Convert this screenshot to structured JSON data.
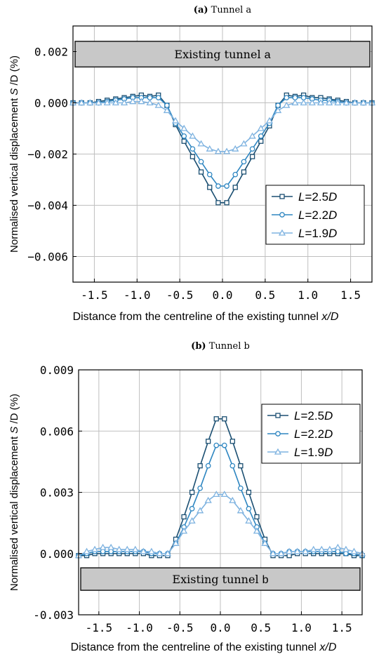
{
  "chart_data": [
    {
      "type": "line",
      "title_prefix": "(a)",
      "title_rest": " Tunnel a",
      "xlabel_main": "Distance from the centreline of the existing tunnel ",
      "xlabel_var": "x",
      "xlabel_unit": "/D",
      "ylabel_main": "Normalised vertical displacement ",
      "ylabel_var": "S",
      "ylabel_unit": " /D (%)",
      "xlim": [
        -1.75,
        1.75
      ],
      "ylim": [
        -0.007,
        0.003
      ],
      "x_ticks": [
        -1.5,
        -1.0,
        -0.5,
        0.0,
        0.5,
        1.0,
        1.5
      ],
      "x_tick_labels": [
        "-1.5",
        "-1.0",
        "-0.5",
        "0.0",
        "0.5",
        "1.0",
        "1.5"
      ],
      "y_ticks": [
        0.002,
        0.0,
        -0.002,
        -0.004,
        -0.006
      ],
      "y_tick_labels": [
        "0.002",
        "0.000",
        "−0.002",
        "−0.004",
        "−0.006"
      ],
      "grid": true,
      "legend_position": "lower-right",
      "annotation_main": "Existing tunnel ",
      "annotation_letter": "a",
      "annotation_ylim": [
        0.0014,
        0.0024
      ],
      "series": [
        {
          "name": "L=2.5D",
          "label_var": "L",
          "label_mid": "=2.5",
          "label_end": "D",
          "marker": "square",
          "color": "#1b4f72",
          "x": [
            -1.75,
            -1.65,
            -1.55,
            -1.45,
            -1.35,
            -1.25,
            -1.15,
            -1.05,
            -0.95,
            -0.85,
            -0.75,
            -0.65,
            -0.55,
            -0.45,
            -0.35,
            -0.25,
            -0.15,
            -0.05,
            0.05,
            0.15,
            0.25,
            0.35,
            0.45,
            0.55,
            0.65,
            0.75,
            0.85,
            0.95,
            1.05,
            1.15,
            1.25,
            1.35,
            1.45,
            1.55,
            1.65,
            1.75
          ],
          "values": [
            0.0,
            0.0,
            0.0,
            5e-05,
            0.0001,
            0.00015,
            0.0002,
            0.00025,
            0.0003,
            0.00025,
            0.0003,
            -0.0001,
            -0.00085,
            -0.0015,
            -0.0021,
            -0.0027,
            -0.0033,
            -0.0039,
            -0.0039,
            -0.0033,
            -0.0027,
            -0.0021,
            -0.0015,
            -0.0009,
            -0.0001,
            0.0003,
            0.00025,
            0.0003,
            0.0002,
            0.0002,
            0.00015,
            0.0001,
            5e-05,
            0.0,
            0.0,
            0.0
          ]
        },
        {
          "name": "L=2.2D",
          "label_var": "L",
          "label_mid": "=2.2",
          "label_end": "D",
          "marker": "circle",
          "color": "#2e86c1",
          "x": [
            -1.75,
            -1.65,
            -1.55,
            -1.45,
            -1.35,
            -1.25,
            -1.15,
            -1.05,
            -0.95,
            -0.85,
            -0.75,
            -0.65,
            -0.55,
            -0.45,
            -0.35,
            -0.25,
            -0.15,
            -0.05,
            0.05,
            0.15,
            0.25,
            0.35,
            0.45,
            0.55,
            0.65,
            0.75,
            0.85,
            0.95,
            1.05,
            1.15,
            1.25,
            1.35,
            1.45,
            1.55,
            1.65,
            1.75
          ],
          "values": [
            0.0,
            0.0,
            0.0,
            0.0,
            5e-05,
            0.0001,
            0.00015,
            0.0002,
            0.0002,
            0.0002,
            0.0002,
            -0.0001,
            -0.0008,
            -0.0013,
            -0.0018,
            -0.0023,
            -0.0028,
            -0.00325,
            -0.00325,
            -0.0028,
            -0.0023,
            -0.0018,
            -0.0013,
            -0.0008,
            -0.0001,
            0.0002,
            0.0002,
            0.0002,
            0.00015,
            0.0001,
            0.0001,
            5e-05,
            0.0,
            0.0,
            0.0,
            0.0
          ]
        },
        {
          "name": "L=1.9D",
          "label_var": "L",
          "label_mid": "=1.9",
          "label_end": "D",
          "marker": "triangle",
          "color": "#7fb3e0",
          "x": [
            -1.75,
            -1.65,
            -1.55,
            -1.45,
            -1.35,
            -1.25,
            -1.15,
            -1.05,
            -0.95,
            -0.85,
            -0.75,
            -0.65,
            -0.55,
            -0.45,
            -0.35,
            -0.25,
            -0.15,
            -0.05,
            0.05,
            0.15,
            0.25,
            0.35,
            0.45,
            0.55,
            0.65,
            0.75,
            0.85,
            0.95,
            1.05,
            1.15,
            1.25,
            1.35,
            1.45,
            1.55,
            1.65,
            1.75
          ],
          "values": [
            0.0,
            0.0,
            0.0,
            0.0,
            0.0,
            0.0,
            0.0,
            5e-05,
            5e-05,
            0.0,
            -0.0001,
            -0.0003,
            -0.0007,
            -0.001,
            -0.0013,
            -0.0016,
            -0.0018,
            -0.0019,
            -0.0019,
            -0.0018,
            -0.0016,
            -0.0013,
            -0.001,
            -0.0007,
            -0.0003,
            -0.0001,
            0.0,
            0.0,
            0.0,
            0.0,
            0.0,
            0.0,
            0.0,
            0.0,
            0.0,
            0.0
          ]
        }
      ]
    },
    {
      "type": "line",
      "title_prefix": "(b)",
      "title_rest": " Tunnel b",
      "xlabel_main": "Distance from the centreline of the existing tunnel ",
      "xlabel_var": "x",
      "xlabel_unit": "/D",
      "ylabel_main": "Normalised vertical displacement ",
      "ylabel_var": "S",
      "ylabel_unit": " /D (%)",
      "xlim": [
        -1.75,
        1.75
      ],
      "ylim": [
        -0.003,
        0.009
      ],
      "x_ticks": [
        -1.5,
        -1.0,
        -0.5,
        0.0,
        0.5,
        1.0,
        1.5
      ],
      "x_tick_labels": [
        "-1.5",
        "-1.0",
        "-0.5",
        "0.0",
        "0.5",
        "1.0",
        "1.5"
      ],
      "y_ticks": [
        0.009,
        0.006,
        0.003,
        0.0,
        -0.003
      ],
      "y_tick_labels": [
        "0.009",
        "0.006",
        "0.003",
        "0.000",
        "-0.003"
      ],
      "grid": true,
      "legend_position": "top-right",
      "annotation_main": "Existing tunnel ",
      "annotation_letter": "b",
      "annotation_ylim": [
        -0.0018,
        -0.0007
      ],
      "series": [
        {
          "name": "L=2.5D",
          "label_var": "L",
          "label_mid": "=2.5",
          "label_end": "D",
          "marker": "square",
          "color": "#1b4f72",
          "x": [
            -1.75,
            -1.65,
            -1.55,
            -1.45,
            -1.35,
            -1.25,
            -1.15,
            -1.05,
            -0.95,
            -0.85,
            -0.75,
            -0.65,
            -0.55,
            -0.45,
            -0.35,
            -0.25,
            -0.15,
            -0.05,
            0.05,
            0.15,
            0.25,
            0.35,
            0.45,
            0.55,
            0.65,
            0.75,
            0.85,
            0.95,
            1.05,
            1.15,
            1.25,
            1.35,
            1.45,
            1.55,
            1.65,
            1.75
          ],
          "values": [
            -0.0001,
            -0.0001,
            0.0,
            0.0,
            0.0,
            0.0,
            0.0,
            0.0,
            0.0,
            -0.0001,
            -0.0001,
            -0.0001,
            0.0007,
            0.0018,
            0.003,
            0.0043,
            0.0055,
            0.0066,
            0.0066,
            0.0055,
            0.0043,
            0.003,
            0.0018,
            0.0007,
            -0.0001,
            -0.0001,
            -0.0001,
            0.0,
            0.0,
            0.0,
            0.0,
            0.0,
            0.0,
            0.0,
            -0.0001,
            -0.0001
          ]
        },
        {
          "name": "L=2.2D",
          "label_var": "L",
          "label_mid": "=2.2",
          "label_end": "D",
          "marker": "circle",
          "color": "#2e86c1",
          "x": [
            -1.75,
            -1.65,
            -1.55,
            -1.45,
            -1.35,
            -1.25,
            -1.15,
            -1.05,
            -0.95,
            -0.85,
            -0.75,
            -0.65,
            -0.55,
            -0.45,
            -0.35,
            -0.25,
            -0.15,
            -0.05,
            0.05,
            0.15,
            0.25,
            0.35,
            0.45,
            0.55,
            0.65,
            0.75,
            0.85,
            0.95,
            1.05,
            1.15,
            1.25,
            1.35,
            1.45,
            1.55,
            1.65,
            1.75
          ],
          "values": [
            -0.0001,
            0.0,
            0.0001,
            0.0001,
            0.0001,
            0.0001,
            0.0001,
            0.0001,
            0.0001,
            0.0,
            0.0,
            0.0,
            0.0005,
            0.0013,
            0.0022,
            0.0032,
            0.0043,
            0.0053,
            0.0053,
            0.0043,
            0.0032,
            0.0022,
            0.0013,
            0.0005,
            0.0,
            0.0,
            0.0001,
            0.0001,
            0.0001,
            0.0001,
            0.0001,
            0.0001,
            0.0001,
            0.0,
            0.0,
            -0.0001
          ]
        },
        {
          "name": "L=1.9D",
          "label_var": "L",
          "label_mid": "=1.9",
          "label_end": "D",
          "marker": "triangle",
          "color": "#7fb3e0",
          "x": [
            -1.75,
            -1.65,
            -1.55,
            -1.45,
            -1.35,
            -1.25,
            -1.15,
            -1.05,
            -0.95,
            -0.85,
            -0.75,
            -0.65,
            -0.55,
            -0.45,
            -0.35,
            -0.25,
            -0.15,
            -0.05,
            0.05,
            0.15,
            0.25,
            0.35,
            0.45,
            0.55,
            0.65,
            0.75,
            0.85,
            0.95,
            1.05,
            1.15,
            1.25,
            1.35,
            1.45,
            1.55,
            1.65,
            1.75
          ],
          "values": [
            -0.0001,
            0.0001,
            0.0002,
            0.0003,
            0.0003,
            0.0002,
            0.0002,
            0.0002,
            0.0001,
            0.0001,
            0.0,
            0.0,
            0.0005,
            0.0011,
            0.0016,
            0.0021,
            0.0026,
            0.0029,
            0.0029,
            0.0026,
            0.0021,
            0.0016,
            0.0011,
            0.0005,
            0.0,
            0.0,
            0.0001,
            0.0001,
            0.0001,
            0.0002,
            0.0002,
            0.0002,
            0.0003,
            0.0002,
            0.0001,
            0.0
          ]
        }
      ]
    }
  ]
}
